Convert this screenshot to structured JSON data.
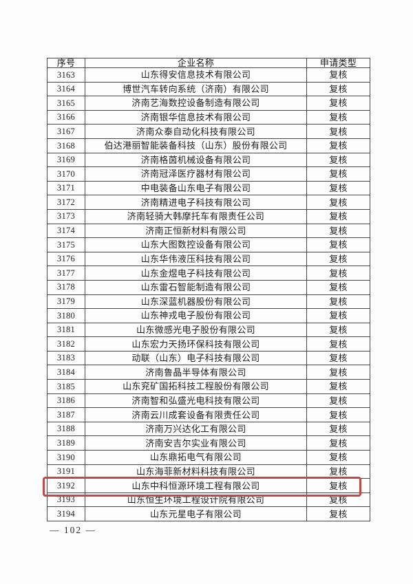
{
  "page": {
    "background": "#fdfdfd",
    "page_number": "— 102 —"
  },
  "table": {
    "columns": [
      {
        "key": "id",
        "label": "序号"
      },
      {
        "key": "name",
        "label": "企业名称"
      },
      {
        "key": "type",
        "label": "申请类型"
      }
    ],
    "highlight": {
      "row_id": "3192",
      "color": "#bd4a47"
    },
    "rows": [
      {
        "id": "3163",
        "name": "山东得安信息技术有限公司",
        "type": "复核",
        "highlighted": false
      },
      {
        "id": "3164",
        "name": "博世汽车转向系统（济南）有限公司",
        "type": "复核",
        "highlighted": false
      },
      {
        "id": "3165",
        "name": "济南艺海数控设备制造有限公司",
        "type": "复核",
        "highlighted": false
      },
      {
        "id": "3166",
        "name": "济南银华信息技术有限公司",
        "type": "复核",
        "highlighted": false
      },
      {
        "id": "3167",
        "name": "济南众泰自动化科技有限公司",
        "type": "复核",
        "highlighted": false
      },
      {
        "id": "3168",
        "name": "伯达港丽智能装备科技（山东）股份有限公司",
        "type": "复核",
        "highlighted": false
      },
      {
        "id": "3169",
        "name": "济南格茵机械设备有限公司",
        "type": "复核",
        "highlighted": false
      },
      {
        "id": "3170",
        "name": "济南冠泽医疗器材有限公司",
        "type": "复核",
        "highlighted": false
      },
      {
        "id": "3171",
        "name": "中电装备山东电子有限公司",
        "type": "复核",
        "highlighted": false
      },
      {
        "id": "3172",
        "name": "济南精进电子科技有限公司",
        "type": "复核",
        "highlighted": false
      },
      {
        "id": "3173",
        "name": "济南轻骑大韩摩托车有限责任公司",
        "type": "复核",
        "highlighted": false
      },
      {
        "id": "3174",
        "name": "济南正恒新材料有限公司",
        "type": "复核",
        "highlighted": false
      },
      {
        "id": "3175",
        "name": "山东大图数控设备有限公司",
        "type": "复核",
        "highlighted": false
      },
      {
        "id": "3176",
        "name": "山东华伟液压科技有限公司",
        "type": "复核",
        "highlighted": false
      },
      {
        "id": "3177",
        "name": "山东金煜电子科技有限公司",
        "type": "复核",
        "highlighted": false
      },
      {
        "id": "3178",
        "name": "山东雷石智能制造有限公司",
        "type": "复核",
        "highlighted": false
      },
      {
        "id": "3179",
        "name": "山东深蓝机器股份有限公司",
        "type": "复核",
        "highlighted": false
      },
      {
        "id": "3180",
        "name": "山东神戎电子股份有限公司",
        "type": "复核",
        "highlighted": false
      },
      {
        "id": "3181",
        "name": "山东微感光电子股份有限公司",
        "type": "复核",
        "highlighted": false
      },
      {
        "id": "3182",
        "name": "山东宏力天扬环保科技有限公司",
        "type": "复核",
        "highlighted": false
      },
      {
        "id": "3183",
        "name": "动联（山东）电子科技有限公司",
        "type": "复核",
        "highlighted": false
      },
      {
        "id": "3184",
        "name": "济南鲁晶半导体有限公司",
        "type": "复核",
        "highlighted": false
      },
      {
        "id": "3185",
        "name": "山东兖矿国拓科技工程股份有限公司",
        "type": "复核",
        "highlighted": false
      },
      {
        "id": "3186",
        "name": "济南智和弘盛光电科技有限公司",
        "type": "复核",
        "highlighted": false
      },
      {
        "id": "3187",
        "name": "济南云川成套设备有限责任公司",
        "type": "复核",
        "highlighted": false
      },
      {
        "id": "3188",
        "name": "济南万兴达化工有限公司",
        "type": "复核",
        "highlighted": false
      },
      {
        "id": "3189",
        "name": "济南安吉尔实业有限公司",
        "type": "复核",
        "highlighted": false
      },
      {
        "id": "3190",
        "name": "山东鼎拓电气有限公司",
        "type": "复核",
        "highlighted": false
      },
      {
        "id": "3191",
        "name": "山东海菲新材料科技有限公司",
        "type": "复核",
        "highlighted": false
      },
      {
        "id": "3192",
        "name": "山东中科恒源环境工程有限公司",
        "type": "复核",
        "highlighted": true
      },
      {
        "id": "3193",
        "name": "山东恒生环境工程设计院有限公司",
        "type": "复核",
        "highlighted": false
      },
      {
        "id": "3194",
        "name": "山东元星电子有限公司",
        "type": "复核",
        "highlighted": false
      }
    ]
  }
}
